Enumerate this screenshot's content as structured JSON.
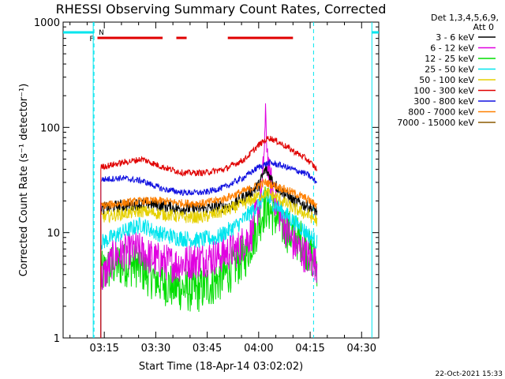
{
  "colors": {
    "background": "#ffffff",
    "axis": "#000000",
    "aqua": "#00e5ee",
    "flag_red": "#e00000"
  },
  "chart_data": {
    "type": "line",
    "title": "RHESSI Observing Summary Count Rates, Corrected",
    "xlabel": "Start Time (18-Apr-14 03:02:02)",
    "ylabel": "Corrected Count Rate (s⁻¹ detector⁻¹)",
    "yscale": "log",
    "xlim_minutes": [
      3.0,
      95.0
    ],
    "ylim": [
      1,
      1000
    ],
    "xticks": [
      {
        "minute": 15,
        "label": "03:15"
      },
      {
        "minute": 30,
        "label": "03:30"
      },
      {
        "minute": 45,
        "label": "03:45"
      },
      {
        "minute": 60,
        "label": "04:00"
      },
      {
        "minute": 75,
        "label": "04:15"
      },
      {
        "minute": 90,
        "label": "04:30"
      }
    ],
    "yticks": [
      {
        "value": 1,
        "label": "1"
      },
      {
        "value": 10,
        "label": "10"
      },
      {
        "value": 100,
        "label": "100"
      },
      {
        "value": 1000,
        "label": "1000"
      }
    ],
    "legend_position": "right",
    "legend_header": [
      "Det 1,3,4,5,6,9,",
      "Att 0"
    ],
    "flags": {
      "night_label": "N",
      "flare_label": "F",
      "night_intervals_minutes": [
        [
          3.0,
          12.0
        ],
        [
          93.0,
          95.0
        ]
      ],
      "saa_intervals_minutes": [
        [
          12.0,
          27.0
        ],
        [
          76.0,
          95.0
        ]
      ],
      "flare_intervals_minutes": [
        [
          13.0,
          32.0
        ],
        [
          36.0,
          39.0
        ],
        [
          51.0,
          70.0
        ]
      ],
      "data_gap_end_minute": 12.0,
      "data_resume_minute": 93.0
    },
    "series": [
      {
        "name": "3 - 6 keV",
        "color": "#000000",
        "noise": 0.06,
        "points": [
          [
            14,
            17
          ],
          [
            20,
            18
          ],
          [
            28,
            19
          ],
          [
            36,
            17
          ],
          [
            44,
            17
          ],
          [
            52,
            18
          ],
          [
            56,
            22
          ],
          [
            60,
            28
          ],
          [
            62,
            40
          ],
          [
            65,
            28
          ],
          [
            70,
            20
          ],
          [
            74,
            18
          ],
          [
            77,
            16
          ]
        ]
      },
      {
        "name": "6 - 12 keV",
        "color": "#e000e0",
        "noise": 0.18,
        "points": [
          [
            14,
            3.5
          ],
          [
            18,
            6
          ],
          [
            24,
            7
          ],
          [
            30,
            5.5
          ],
          [
            36,
            5
          ],
          [
            42,
            5.5
          ],
          [
            48,
            6
          ],
          [
            54,
            7
          ],
          [
            58,
            10
          ],
          [
            61,
            25
          ],
          [
            62,
            115
          ],
          [
            63,
            35
          ],
          [
            66,
            15
          ],
          [
            70,
            8
          ],
          [
            74,
            6
          ],
          [
            77,
            5
          ]
        ]
      },
      {
        "name": "12 - 25 keV",
        "color": "#00dd00",
        "noise": 0.22,
        "points": [
          [
            14,
            4
          ],
          [
            18,
            5
          ],
          [
            24,
            5
          ],
          [
            30,
            3.6
          ],
          [
            36,
            3
          ],
          [
            42,
            2.8
          ],
          [
            48,
            3.5
          ],
          [
            52,
            4.5
          ],
          [
            56,
            6
          ],
          [
            59,
            10
          ],
          [
            62,
            18
          ],
          [
            65,
            14
          ],
          [
            69,
            10
          ],
          [
            73,
            8
          ],
          [
            77,
            5
          ]
        ]
      },
      {
        "name": "25 - 50 keV",
        "color": "#00e5ee",
        "noise": 0.08,
        "points": [
          [
            14,
            8
          ],
          [
            20,
            10
          ],
          [
            26,
            12
          ],
          [
            30,
            10
          ],
          [
            36,
            9
          ],
          [
            42,
            8.5
          ],
          [
            48,
            9
          ],
          [
            54,
            12
          ],
          [
            58,
            16
          ],
          [
            62,
            22
          ],
          [
            66,
            17
          ],
          [
            70,
            13
          ],
          [
            74,
            10
          ],
          [
            77,
            8
          ]
        ]
      },
      {
        "name": "50 - 100 keV",
        "color": "#e5d000",
        "noise": 0.06,
        "points": [
          [
            14,
            14
          ],
          [
            20,
            15
          ],
          [
            26,
            16
          ],
          [
            32,
            15
          ],
          [
            38,
            14
          ],
          [
            44,
            14
          ],
          [
            50,
            16
          ],
          [
            56,
            19
          ],
          [
            62,
            24
          ],
          [
            66,
            21
          ],
          [
            70,
            17
          ],
          [
            74,
            15
          ],
          [
            77,
            13
          ]
        ]
      },
      {
        "name": "100 - 300 keV",
        "color": "#e00000",
        "noise": 0.03,
        "points": [
          [
            14,
            42
          ],
          [
            20,
            46
          ],
          [
            26,
            50
          ],
          [
            32,
            42
          ],
          [
            38,
            37
          ],
          [
            44,
            37
          ],
          [
            50,
            40
          ],
          [
            56,
            50
          ],
          [
            60,
            68
          ],
          [
            63,
            80
          ],
          [
            66,
            72
          ],
          [
            70,
            60
          ],
          [
            74,
            50
          ],
          [
            77,
            40
          ]
        ]
      },
      {
        "name": "300 - 800 keV",
        "color": "#1010e0",
        "noise": 0.03,
        "points": [
          [
            14,
            32
          ],
          [
            20,
            33
          ],
          [
            26,
            31
          ],
          [
            32,
            26
          ],
          [
            38,
            24
          ],
          [
            44,
            24
          ],
          [
            50,
            27
          ],
          [
            56,
            34
          ],
          [
            60,
            42
          ],
          [
            63,
            46
          ],
          [
            66,
            44
          ],
          [
            70,
            40
          ],
          [
            74,
            36
          ],
          [
            77,
            30
          ]
        ]
      },
      {
        "name": "800 - 7000 keV",
        "color": "#ff8000",
        "noise": 0.04,
        "points": [
          [
            14,
            18
          ],
          [
            20,
            19
          ],
          [
            26,
            20
          ],
          [
            32,
            20
          ],
          [
            38,
            19
          ],
          [
            44,
            19
          ],
          [
            50,
            21
          ],
          [
            56,
            25
          ],
          [
            62,
            30
          ],
          [
            66,
            27
          ],
          [
            70,
            24
          ],
          [
            74,
            21
          ],
          [
            77,
            18
          ]
        ]
      },
      {
        "name": "7000 - 15000 keV",
        "color": "#8b5a00",
        "noise": 0.0,
        "points": []
      }
    ]
  },
  "footer_date": "22-Oct-2021 15:33"
}
